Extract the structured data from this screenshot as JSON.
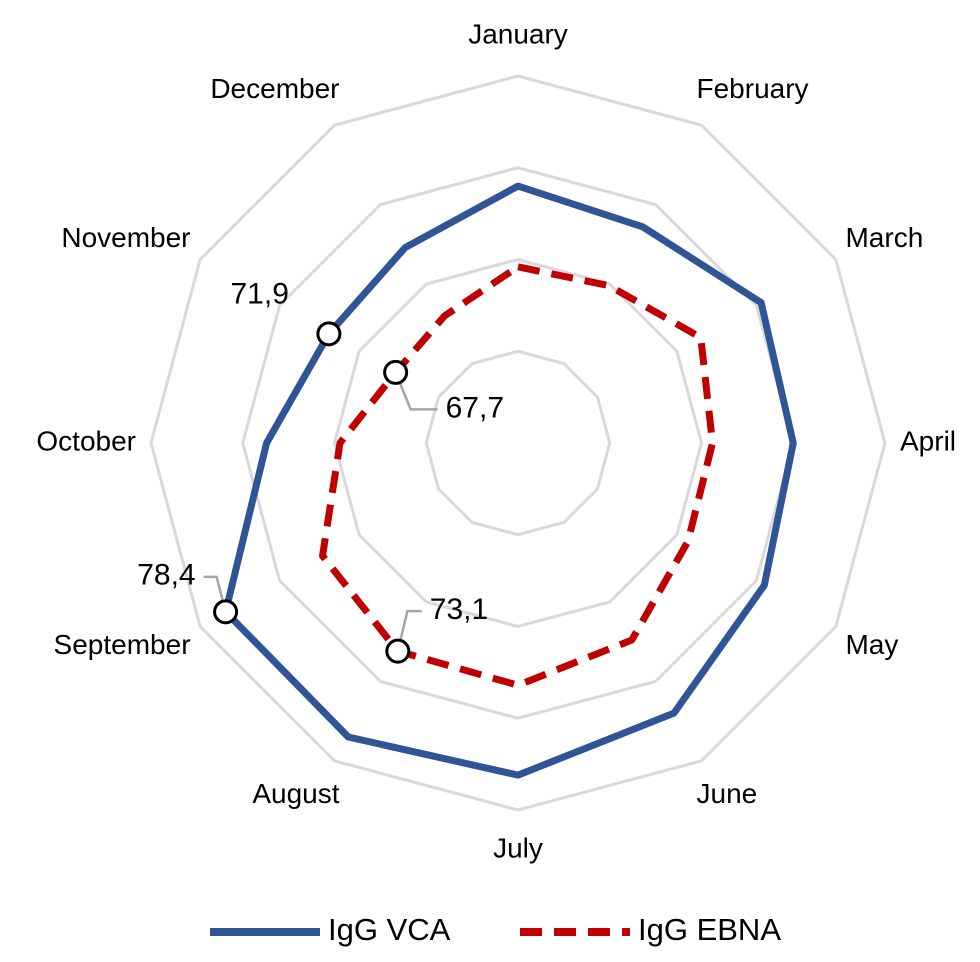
{
  "chart_data": {
    "type": "radar",
    "categories": [
      "January",
      "February",
      "March",
      "April",
      "May",
      "June",
      "July",
      "August",
      "September",
      "October",
      "November",
      "December"
    ],
    "rlim": [
      60,
      80
    ],
    "rticks": [
      65,
      70,
      75,
      80
    ],
    "grid": true,
    "legend": "bottom",
    "series": [
      {
        "name": "IgG VCA",
        "color": "#2f5597",
        "dash": false,
        "values": [
          74.0,
          73.6,
          75.3,
          75.0,
          75.5,
          77.0,
          78.1,
          78.5,
          78.4,
          73.7,
          71.9,
          72.3
        ],
        "value_labels": [
          null,
          null,
          null,
          null,
          null,
          null,
          null,
          null,
          "78,4",
          null,
          "71,9",
          null
        ]
      },
      {
        "name": "IgG EBNA",
        "color": "#c00000",
        "dash": true,
        "values": [
          69.6,
          69.9,
          71.5,
          70.6,
          70.7,
          72.4,
          73.2,
          73.1,
          72.3,
          69.7,
          67.7,
          68.0
        ],
        "value_labels": [
          null,
          null,
          null,
          null,
          null,
          null,
          null,
          "73,1",
          null,
          null,
          "67,7",
          null
        ]
      }
    ]
  }
}
